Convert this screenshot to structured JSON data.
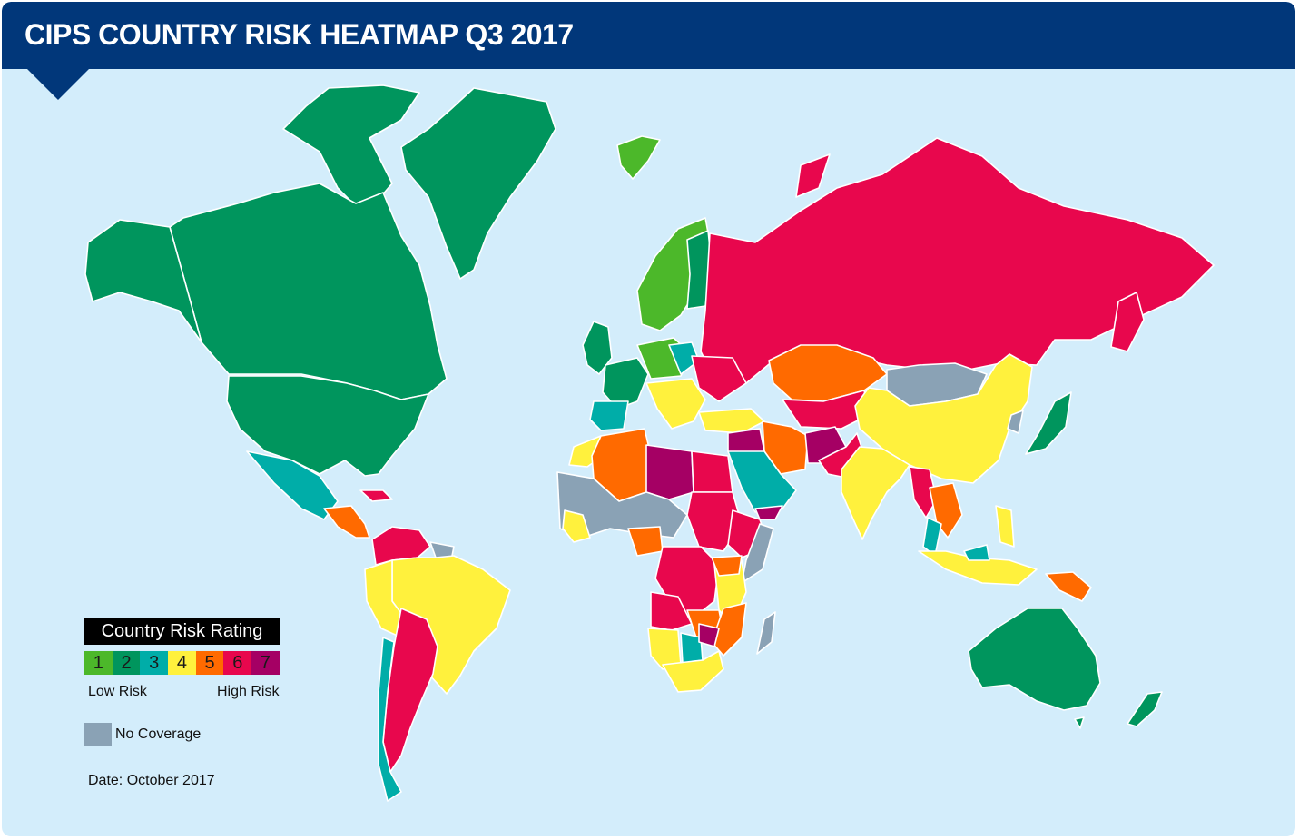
{
  "title": "CIPS COUNTRY RISK HEATMAP Q3 2017",
  "legend": {
    "title": "Country Risk Rating",
    "low_label": "Low Risk",
    "high_label": "High Risk",
    "levels": [
      {
        "value": "1",
        "color": "#4cb82a"
      },
      {
        "value": "2",
        "color": "#00955d"
      },
      {
        "value": "3",
        "color": "#00ada8"
      },
      {
        "value": "4",
        "color": "#fff13d"
      },
      {
        "value": "5",
        "color": "#ff6a00"
      },
      {
        "value": "6",
        "color": "#e8074d"
      },
      {
        "value": "7",
        "color": "#a50064"
      }
    ],
    "no_coverage": {
      "label": "No Coverage",
      "color": "#8aa2b5"
    }
  },
  "date": "Date: October 2017",
  "colors": {
    "header": "#01377a",
    "ocean": "#d3edfb"
  }
}
